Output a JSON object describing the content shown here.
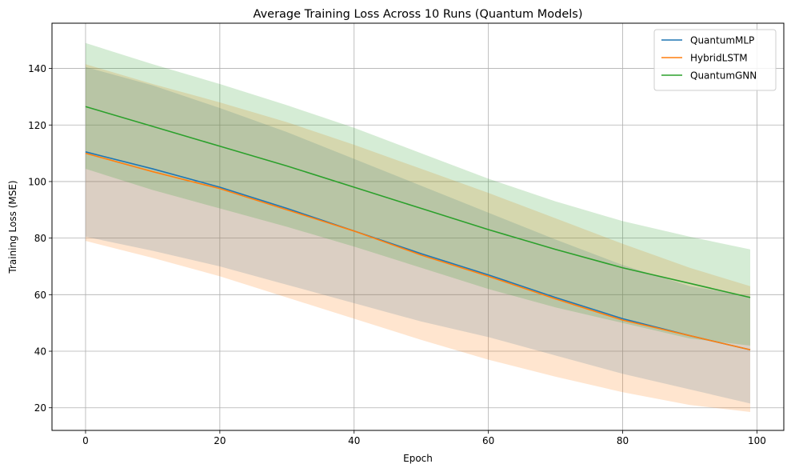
{
  "chart_data": {
    "type": "line",
    "title": "Average Training Loss Across 10 Runs (Quantum Models)",
    "xlabel": "Epoch",
    "ylabel": "Training Loss (MSE)",
    "xlim": [
      -5,
      104
    ],
    "ylim": [
      12,
      156
    ],
    "xticks": [
      0,
      20,
      40,
      60,
      80,
      100
    ],
    "yticks": [
      20,
      40,
      60,
      80,
      100,
      120,
      140
    ],
    "grid": true,
    "legend_position": "top-right",
    "x": [
      0,
      10,
      20,
      30,
      40,
      50,
      60,
      70,
      80,
      90,
      99
    ],
    "series": [
      {
        "name": "QuantumMLP",
        "color": "#1f77b4",
        "mean": [
          110.5,
          104.5,
          98,
          90.5,
          82.5,
          74.5,
          67,
          59,
          51.5,
          45.5,
          40.5
        ],
        "lower": [
          80.5,
          75.5,
          70,
          63.5,
          57,
          50.5,
          45,
          38.5,
          32,
          26.5,
          21.5
        ],
        "upper": [
          140.5,
          134,
          126,
          117.5,
          108,
          98.5,
          89,
          79.5,
          70.5,
          63,
          59.5
        ]
      },
      {
        "name": "HybridLSTM",
        "color": "#ff7f0e",
        "mean": [
          110,
          103.5,
          97.5,
          90,
          82.5,
          74,
          66.5,
          58.5,
          51,
          45.5,
          40.5
        ],
        "lower": [
          79,
          73,
          66.5,
          59,
          51.5,
          44,
          37,
          31,
          25.5,
          21,
          18.5
        ],
        "upper": [
          141.5,
          134.5,
          128,
          121,
          113,
          104.5,
          96,
          87,
          78,
          69.5,
          63
        ]
      },
      {
        "name": "QuantumGNN",
        "color": "#2ca02c",
        "mean": [
          126.5,
          119.5,
          112.5,
          105.5,
          98,
          90.5,
          83,
          76,
          69.5,
          64,
          59
        ],
        "lower": [
          104.5,
          97,
          90.5,
          84,
          77,
          69.5,
          62,
          55.5,
          50,
          44.5,
          42
        ],
        "upper": [
          149,
          141.5,
          134.5,
          127,
          119,
          110,
          101,
          93,
          86,
          80.5,
          76
        ]
      }
    ]
  }
}
